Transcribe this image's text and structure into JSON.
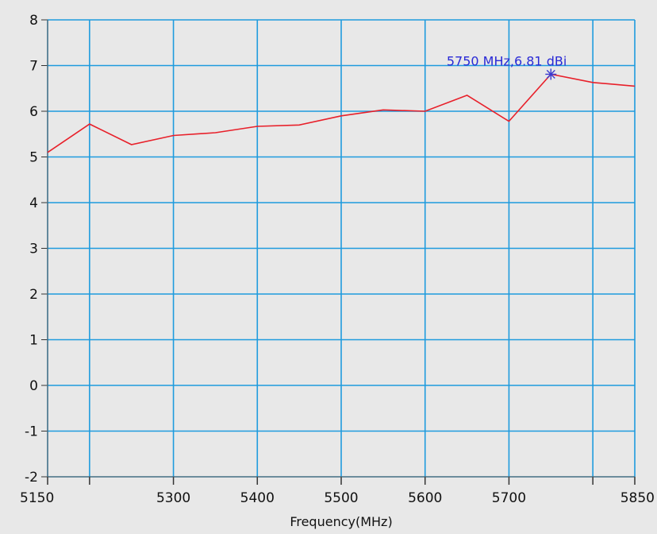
{
  "chart_data": {
    "type": "line",
    "xlabel": "Frequency(MHz)",
    "ylabel": "",
    "xlim": [
      5150,
      5850
    ],
    "ylim": [
      -2,
      8
    ],
    "x_ticks": [
      5150,
      5200,
      5300,
      5400,
      5500,
      5600,
      5700,
      5800,
      5850
    ],
    "x_tick_labels": [
      "5150",
      "",
      "5300",
      "5400",
      "5500",
      "5600",
      "5700",
      "",
      "5850"
    ],
    "y_ticks": [
      -2,
      -1,
      0,
      1,
      2,
      3,
      4,
      5,
      6,
      7,
      8
    ],
    "y_tick_labels": [
      "-2",
      "-1",
      "0",
      "1",
      "2",
      "3",
      "4",
      "5",
      "6",
      "7",
      "8"
    ],
    "grid": true,
    "series": [
      {
        "x": [
          5150,
          5200,
          5250,
          5300,
          5350,
          5400,
          5450,
          5500,
          5550,
          5600,
          5650,
          5700,
          5750,
          5800,
          5850
        ],
        "y": [
          5.1,
          5.72,
          5.27,
          5.47,
          5.53,
          5.67,
          5.7,
          5.9,
          6.03,
          6.0,
          6.35,
          5.78,
          6.81,
          6.63,
          6.55
        ]
      }
    ],
    "annotation": {
      "text": "5750 MHz,6.81 dBi",
      "x": 5750,
      "y": 6.81
    }
  },
  "colors": {
    "background": "#e8e8e8",
    "grid": "#1e9bde",
    "line": "#e8202a",
    "annotation": "#2a2ad6",
    "marker": "#3a3ad0"
  }
}
